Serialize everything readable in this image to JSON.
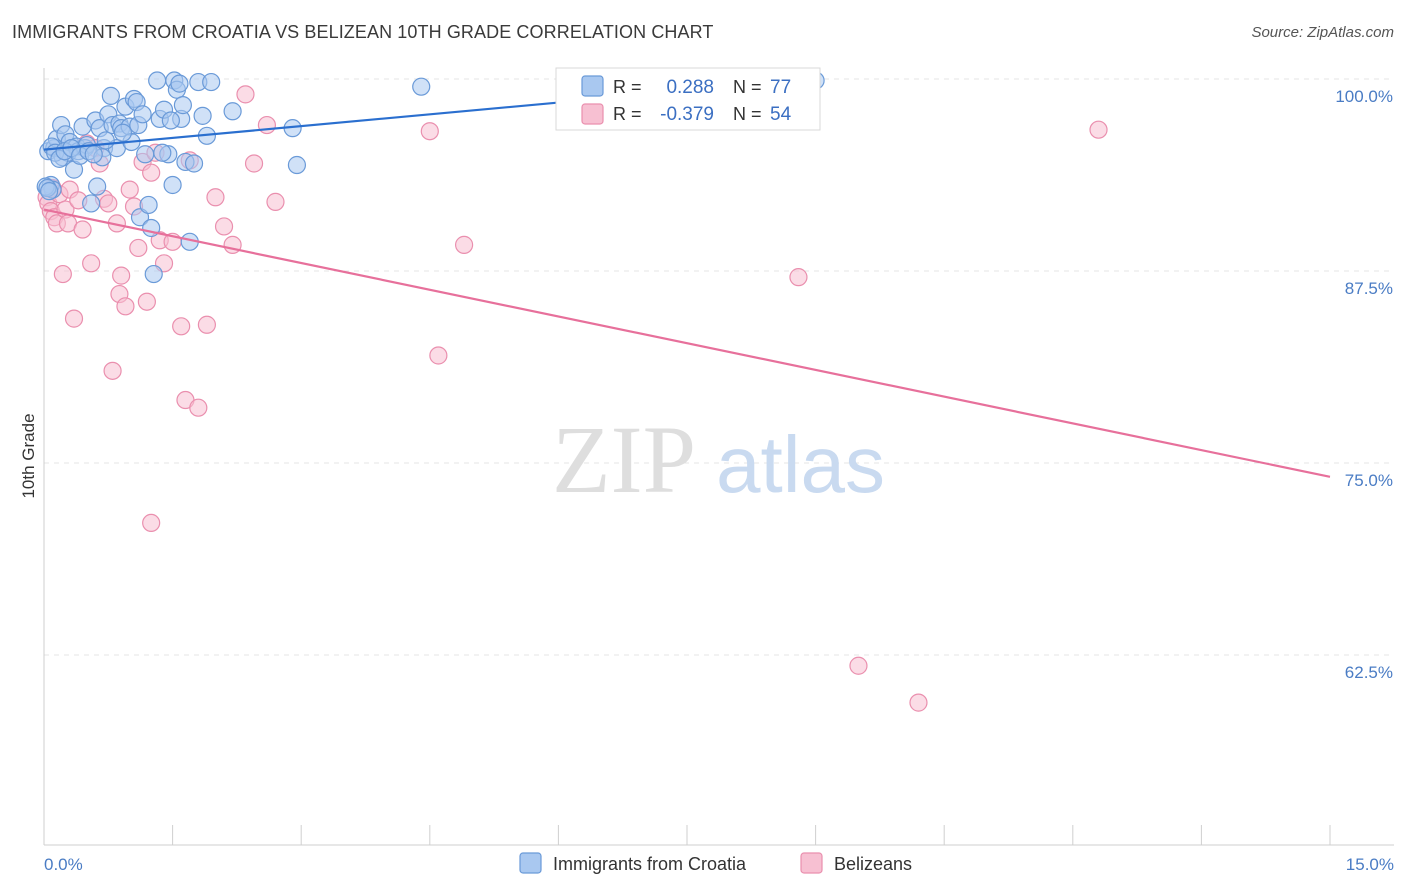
{
  "header": {
    "title": "IMMIGRANTS FROM CROATIA VS BELIZEAN 10TH GRADE CORRELATION CHART",
    "source": "Source: ZipAtlas.com"
  },
  "watermark": {
    "zip": "ZIP",
    "atlas": "atlas"
  },
  "colors": {
    "croatia_fill": "#a9c8f0",
    "croatia_stroke": "#6a9ad8",
    "croatia_line": "#2a6fcf",
    "belize_fill": "#f7c0d2",
    "belize_stroke": "#ea8fae",
    "belize_line": "#e7709b",
    "grid": "#e4e4e4",
    "axis_label": "#4a7cc4"
  },
  "legend_box": {
    "rows": [
      {
        "r_label": "R =",
        "r_value": "0.288",
        "n_label": "N =",
        "n_value": "77"
      },
      {
        "r_label": "R =",
        "r_value": "-0.379",
        "n_label": "N =",
        "n_value": "54"
      }
    ]
  },
  "bottom_legend": [
    "Immigrants from Croatia",
    "Belizeans"
  ],
  "chart_data": {
    "type": "scatter",
    "title": "IMMIGRANTS FROM CROATIA VS BELIZEAN 10TH GRADE CORRELATION CHART",
    "xlabel": "",
    "ylabel": "10th Grade",
    "xlim": [
      0.0,
      15.0
    ],
    "ylim": [
      50.0,
      101.5
    ],
    "x_tick_labels": [
      "0.0%",
      "15.0%"
    ],
    "y_ticks": [
      62.5,
      75.0,
      87.5,
      100.0
    ],
    "y_tick_labels": [
      "62.5%",
      "75.0%",
      "87.5%",
      "100.0%"
    ],
    "series": [
      {
        "name": "Immigrants from Croatia",
        "R": 0.288,
        "N": 77,
        "trend": {
          "x": [
            0.0,
            9.0
          ],
          "y": [
            95.4,
            100.0
          ]
        },
        "points": [
          [
            0.05,
            95.3
          ],
          [
            0.08,
            93.1
          ],
          [
            0.1,
            92.8
          ],
          [
            0.12,
            95.5
          ],
          [
            0.15,
            96.1
          ],
          [
            0.2,
            97.0
          ],
          [
            0.22,
            94.9
          ],
          [
            0.25,
            96.4
          ],
          [
            0.28,
            95.2
          ],
          [
            0.3,
            95.9
          ],
          [
            0.35,
            94.1
          ],
          [
            0.38,
            95.6
          ],
          [
            0.4,
            95.3
          ],
          [
            0.45,
            96.9
          ],
          [
            0.48,
            95.5
          ],
          [
            0.5,
            95.7
          ],
          [
            0.55,
            91.9
          ],
          [
            0.6,
            97.3
          ],
          [
            0.62,
            93.0
          ],
          [
            0.65,
            96.8
          ],
          [
            0.7,
            95.5
          ],
          [
            0.75,
            97.7
          ],
          [
            0.78,
            98.9
          ],
          [
            0.8,
            97.0
          ],
          [
            0.85,
            95.5
          ],
          [
            0.88,
            97.1
          ],
          [
            0.9,
            96.8
          ],
          [
            0.95,
            98.2
          ],
          [
            1.0,
            96.9
          ],
          [
            1.02,
            95.9
          ],
          [
            1.05,
            98.7
          ],
          [
            1.08,
            98.5
          ],
          [
            1.1,
            97.0
          ],
          [
            1.12,
            91.0
          ],
          [
            1.15,
            97.7
          ],
          [
            1.18,
            95.1
          ],
          [
            1.22,
            91.8
          ],
          [
            1.25,
            90.3
          ],
          [
            1.28,
            87.3
          ],
          [
            1.32,
            99.9
          ],
          [
            1.35,
            97.4
          ],
          [
            1.4,
            98.0
          ],
          [
            1.45,
            95.1
          ],
          [
            1.5,
            93.1
          ],
          [
            1.52,
            99.9
          ],
          [
            1.55,
            99.3
          ],
          [
            1.58,
            99.7
          ],
          [
            1.6,
            97.4
          ],
          [
            1.65,
            94.6
          ],
          [
            1.7,
            89.4
          ],
          [
            1.75,
            94.5
          ],
          [
            1.8,
            99.8
          ],
          [
            1.85,
            97.6
          ],
          [
            1.9,
            96.3
          ],
          [
            1.95,
            99.8
          ],
          [
            2.2,
            97.9
          ],
          [
            2.9,
            96.8
          ],
          [
            2.95,
            94.4
          ],
          [
            4.4,
            99.5
          ],
          [
            9.0,
            99.9
          ],
          [
            0.02,
            93.0
          ],
          [
            0.04,
            92.9
          ],
          [
            0.06,
            92.7
          ],
          [
            0.09,
            95.6
          ],
          [
            0.13,
            95.2
          ],
          [
            0.18,
            94.8
          ],
          [
            0.24,
            95.3
          ],
          [
            0.32,
            95.5
          ],
          [
            0.42,
            95.0
          ],
          [
            0.52,
            95.3
          ],
          [
            0.68,
            94.9
          ],
          [
            0.92,
            96.5
          ],
          [
            1.38,
            95.2
          ],
          [
            1.62,
            98.3
          ],
          [
            0.58,
            95.1
          ],
          [
            0.72,
            96.0
          ],
          [
            1.48,
            97.3
          ]
        ]
      },
      {
        "name": "Belizeans",
        "R": -0.379,
        "N": 54,
        "trend": {
          "x": [
            0.0,
            15.0
          ],
          "y": [
            91.5,
            74.1
          ]
        },
        "points": [
          [
            0.03,
            92.3
          ],
          [
            0.05,
            91.9
          ],
          [
            0.08,
            91.4
          ],
          [
            0.1,
            92.9
          ],
          [
            0.12,
            91.0
          ],
          [
            0.15,
            90.6
          ],
          [
            0.18,
            92.5
          ],
          [
            0.22,
            87.3
          ],
          [
            0.25,
            91.5
          ],
          [
            0.28,
            90.6
          ],
          [
            0.3,
            92.8
          ],
          [
            0.35,
            84.4
          ],
          [
            0.4,
            92.1
          ],
          [
            0.45,
            90.2
          ],
          [
            0.5,
            95.8
          ],
          [
            0.55,
            88.0
          ],
          [
            0.6,
            95.5
          ],
          [
            0.65,
            94.5
          ],
          [
            0.7,
            92.2
          ],
          [
            0.75,
            91.9
          ],
          [
            0.8,
            81.0
          ],
          [
            0.85,
            90.6
          ],
          [
            0.88,
            86.0
          ],
          [
            0.9,
            87.2
          ],
          [
            0.95,
            85.2
          ],
          [
            1.0,
            92.8
          ],
          [
            1.05,
            91.7
          ],
          [
            1.1,
            89.0
          ],
          [
            1.15,
            94.6
          ],
          [
            1.2,
            85.5
          ],
          [
            1.25,
            93.9
          ],
          [
            1.3,
            95.2
          ],
          [
            1.35,
            89.5
          ],
          [
            1.4,
            88.0
          ],
          [
            1.5,
            89.4
          ],
          [
            1.6,
            83.9
          ],
          [
            1.65,
            79.1
          ],
          [
            1.7,
            94.7
          ],
          [
            1.8,
            78.6
          ],
          [
            1.9,
            84.0
          ],
          [
            2.0,
            92.3
          ],
          [
            2.1,
            90.4
          ],
          [
            2.2,
            89.2
          ],
          [
            2.35,
            99.0
          ],
          [
            2.45,
            94.5
          ],
          [
            2.6,
            97.0
          ],
          [
            2.7,
            92.0
          ],
          [
            4.5,
            96.6
          ],
          [
            4.6,
            82.0
          ],
          [
            4.9,
            89.2
          ],
          [
            8.8,
            87.1
          ],
          [
            9.5,
            61.8
          ],
          [
            10.2,
            59.4
          ],
          [
            12.3,
            96.7
          ]
        ]
      }
    ],
    "extra_points": [
      [
        1.25,
        71.1
      ]
    ]
  }
}
